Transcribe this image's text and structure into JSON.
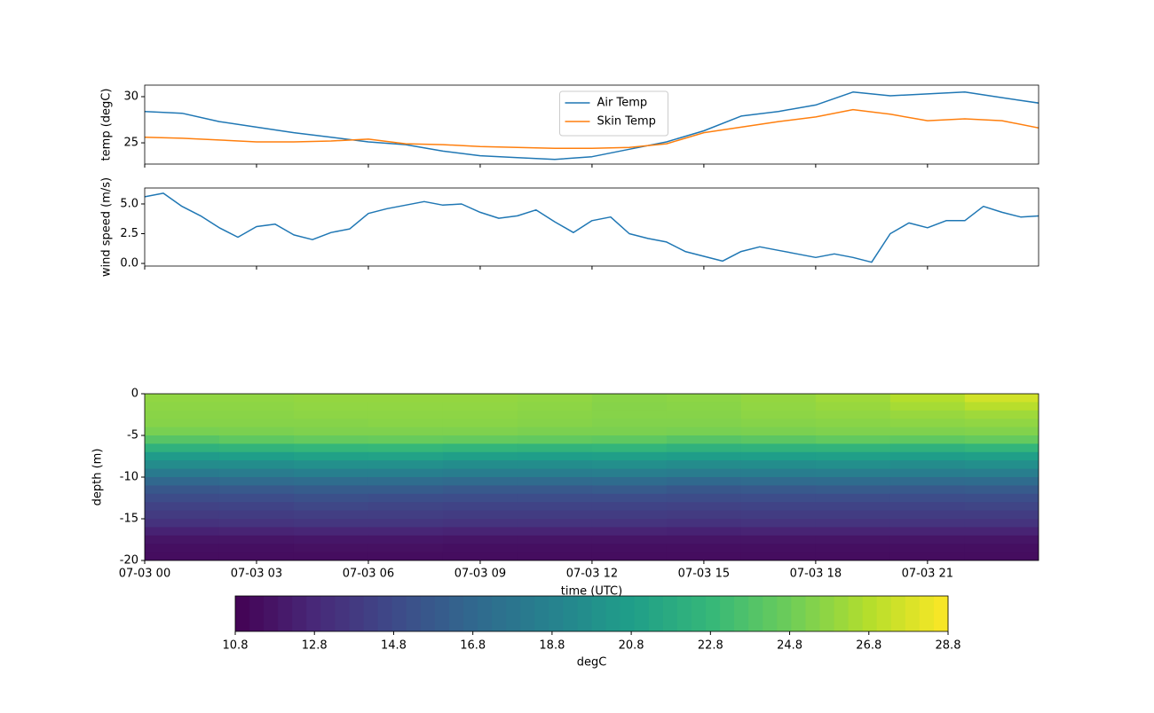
{
  "chart_data": [
    {
      "type": "line",
      "ylabel": "temp (degC)",
      "legend": "upper center",
      "x": [
        0,
        1,
        2,
        3,
        4,
        5,
        6,
        7,
        8,
        9,
        10,
        11,
        12,
        13,
        14,
        15,
        16,
        17,
        18,
        19,
        20,
        21,
        22,
        23,
        24
      ],
      "series": [
        {
          "name": "Air Temp",
          "color": "#1f77b4",
          "values": [
            28.4,
            28.2,
            27.3,
            26.7,
            26.1,
            25.6,
            25.1,
            24.8,
            24.1,
            23.6,
            23.4,
            23.2,
            23.5,
            24.3,
            25.1,
            26.3,
            27.9,
            28.4,
            29.1,
            30.5,
            30.1,
            30.3,
            30.5,
            29.9,
            29.3
          ]
        },
        {
          "name": "Skin Temp",
          "color": "#ff7f0e",
          "values": [
            25.6,
            25.5,
            25.3,
            25.1,
            25.1,
            25.2,
            25.4,
            24.9,
            24.8,
            24.6,
            24.5,
            24.4,
            24.4,
            24.5,
            24.9,
            26.1,
            26.7,
            27.3,
            27.8,
            28.6,
            28.1,
            27.4,
            27.6,
            27.4,
            26.6
          ]
        }
      ],
      "xlim": [
        0,
        23.98
      ],
      "xticks": [
        0,
        3,
        6,
        9,
        12,
        15,
        18,
        21
      ],
      "ylim": [
        22.7,
        31.25
      ],
      "yticks": [
        25,
        30
      ]
    },
    {
      "type": "line",
      "ylabel": "wind speed (m/s)",
      "x": [
        0,
        0.5,
        1,
        1.5,
        2,
        2.5,
        3,
        3.5,
        4,
        4.5,
        5,
        5.5,
        6,
        6.5,
        7,
        7.5,
        8,
        8.5,
        9,
        9.5,
        10,
        10.5,
        11,
        11.5,
        12,
        12.5,
        13,
        13.5,
        14,
        14.5,
        15,
        15.5,
        16,
        16.5,
        17,
        17.5,
        18,
        18.5,
        19,
        19.5,
        20,
        20.5,
        21,
        21.5,
        22,
        22.5,
        23,
        23.5,
        24
      ],
      "series": [
        {
          "name": "wind speed",
          "color": "#1f77b4",
          "values": [
            5.6,
            5.9,
            4.8,
            4.0,
            3.0,
            2.2,
            3.1,
            3.3,
            2.4,
            2.0,
            2.6,
            2.9,
            4.2,
            4.6,
            4.9,
            5.2,
            4.9,
            5.0,
            4.3,
            3.8,
            4.0,
            4.5,
            3.5,
            2.6,
            3.6,
            3.9,
            2.5,
            2.1,
            1.8,
            1.0,
            0.6,
            0.2,
            1.0,
            1.4,
            1.1,
            0.8,
            0.5,
            0.8,
            0.5,
            0.1,
            2.5,
            3.4,
            3.0,
            3.6,
            3.6,
            4.8,
            4.3,
            3.9,
            4.0
          ]
        }
      ],
      "xlim": [
        0,
        23.98
      ],
      "xticks": [
        0,
        3,
        6,
        9,
        12,
        15,
        18,
        21
      ],
      "ylim": [
        -0.22,
        6.34
      ],
      "yticks": [
        {
          "value": 0,
          "label": "0.0"
        },
        2.5,
        {
          "value": 5,
          "label": "5.0"
        }
      ]
    },
    {
      "type": "heatmap",
      "ylabel": "depth (m)",
      "xlabel": "time (UTC)",
      "colormap": "viridis",
      "x": [
        1,
        3,
        5,
        7,
        9,
        11,
        13,
        15,
        17,
        19,
        21,
        23
      ],
      "cell_width": 2,
      "y": [
        -0.5,
        -1.5,
        -2.5,
        -3.5,
        -4.5,
        -5.5,
        -6.5,
        -7.5,
        -8.5,
        -9.5,
        -10.5,
        -11.5,
        -12.5,
        -13.5,
        -14.5,
        -15.5,
        -16.5,
        -17.5,
        -18.5,
        -19.5
      ],
      "cell_height": 1,
      "z": [
        [
          25.8,
          25.8,
          25.9,
          25.9,
          25.9,
          25.8,
          25.6,
          25.7,
          25.9,
          26.2,
          26.8,
          27.6
        ],
        [
          25.7,
          25.7,
          25.8,
          25.8,
          25.8,
          25.7,
          25.5,
          25.6,
          25.8,
          26.0,
          26.4,
          26.9
        ],
        [
          25.6,
          25.6,
          25.7,
          25.7,
          25.7,
          25.6,
          25.5,
          25.5,
          25.7,
          25.8,
          26.0,
          26.2
        ],
        [
          25.5,
          25.5,
          25.5,
          25.6,
          25.6,
          25.5,
          25.4,
          25.4,
          25.5,
          25.6,
          25.7,
          25.8
        ],
        [
          25.1,
          25.2,
          25.3,
          25.3,
          25.3,
          25.2,
          25.2,
          25.1,
          25.2,
          25.3,
          25.3,
          25.4
        ],
        [
          24.0,
          24.3,
          24.5,
          24.6,
          24.5,
          24.4,
          24.3,
          24.0,
          24.2,
          24.4,
          24.3,
          24.5
        ],
        [
          22.3,
          22.5,
          22.7,
          22.8,
          22.6,
          22.5,
          22.6,
          22.3,
          22.4,
          22.5,
          22.3,
          22.6
        ],
        [
          20.6,
          20.8,
          21.0,
          21.1,
          20.9,
          20.8,
          20.9,
          20.7,
          20.8,
          20.9,
          20.7,
          20.9
        ],
        [
          19.5,
          19.6,
          19.8,
          19.8,
          19.6,
          19.6,
          19.7,
          19.5,
          19.6,
          19.7,
          19.5,
          19.7
        ],
        [
          18.2,
          18.3,
          18.6,
          18.6,
          18.4,
          18.4,
          18.5,
          18.3,
          18.4,
          18.5,
          18.4,
          18.5
        ],
        [
          16.8,
          17.0,
          17.2,
          17.2,
          17.0,
          17.0,
          17.1,
          16.9,
          17.0,
          17.1,
          17.0,
          17.1
        ],
        [
          15.7,
          15.8,
          16.0,
          16.0,
          15.8,
          15.8,
          15.9,
          15.7,
          15.8,
          15.9,
          15.8,
          15.9
        ],
        [
          14.9,
          15.0,
          15.2,
          15.1,
          15.0,
          15.0,
          15.0,
          14.9,
          15.0,
          15.0,
          15.0,
          15.1
        ],
        [
          14.3,
          14.4,
          14.6,
          14.5,
          14.4,
          14.4,
          14.4,
          14.3,
          14.4,
          14.4,
          14.4,
          14.5
        ],
        [
          13.9,
          14.0,
          14.1,
          14.1,
          14.0,
          14.0,
          14.0,
          13.9,
          14.0,
          14.0,
          14.0,
          14.0
        ],
        [
          13.4,
          13.5,
          13.6,
          13.6,
          13.5,
          13.5,
          13.5,
          13.4,
          13.5,
          13.5,
          13.5,
          13.5
        ],
        [
          12.5,
          12.6,
          12.7,
          12.7,
          12.6,
          12.6,
          12.6,
          12.5,
          12.6,
          12.6,
          12.6,
          12.6
        ],
        [
          11.8,
          11.8,
          11.9,
          11.9,
          11.8,
          11.8,
          11.8,
          11.8,
          11.8,
          11.8,
          11.8,
          11.8
        ],
        [
          11.5,
          11.5,
          11.6,
          11.6,
          11.5,
          11.5,
          11.5,
          11.5,
          11.5,
          11.5,
          11.5,
          11.5
        ],
        [
          11.4,
          11.4,
          11.4,
          11.4,
          11.4,
          11.4,
          11.4,
          11.4,
          11.4,
          11.4,
          11.4,
          11.4
        ]
      ],
      "xlim": [
        0,
        23.98
      ],
      "xticks": [
        {
          "value": 0,
          "label": "07-03 00"
        },
        {
          "value": 3,
          "label": "07-03 03"
        },
        {
          "value": 6,
          "label": "07-03 06"
        },
        {
          "value": 9,
          "label": "07-03 09"
        },
        {
          "value": 12,
          "label": "07-03 12"
        },
        {
          "value": 15,
          "label": "07-03 15"
        },
        {
          "value": 18,
          "label": "07-03 18"
        },
        {
          "value": 21,
          "label": "07-03 21"
        }
      ],
      "ylim": [
        -20,
        0
      ],
      "yticks": [
        0,
        -5,
        -10,
        -15,
        -20
      ],
      "zlim": [
        10.8,
        28.8
      ],
      "colorbar_label": "degC",
      "colorbar_ticks": [
        10.8,
        12.8,
        14.8,
        16.8,
        18.8,
        20.8,
        22.8,
        24.8,
        26.8,
        28.8
      ]
    }
  ]
}
